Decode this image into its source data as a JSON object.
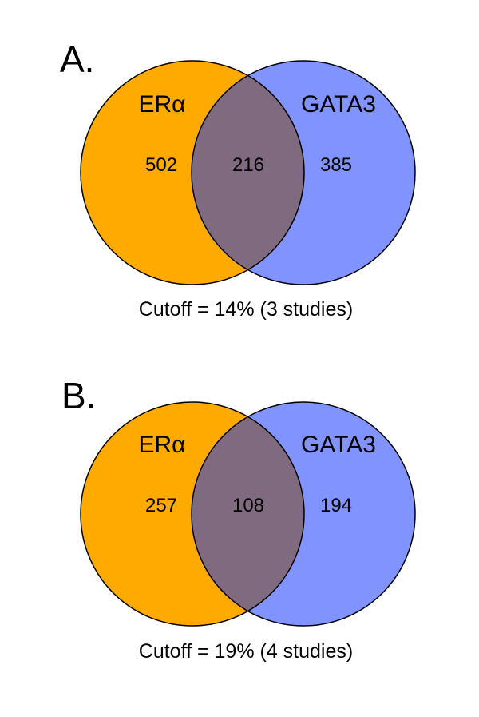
{
  "colors": {
    "left_set": "#FFAA00",
    "right_set": "#8093FF",
    "overlap": "#806A80",
    "outline": "#000000"
  },
  "panels": [
    {
      "letter": "A.",
      "left_label": "ERα",
      "right_label": "GATA3",
      "left_only": "502",
      "overlap": "216",
      "right_only": "385",
      "cutoff": "Cutoff = 14% (3 studies)"
    },
    {
      "letter": "B.",
      "left_label": "ERα",
      "right_label": "GATA3",
      "left_only": "257",
      "overlap": "108",
      "right_only": "194",
      "cutoff": "Cutoff = 19% (4 studies)"
    }
  ]
}
